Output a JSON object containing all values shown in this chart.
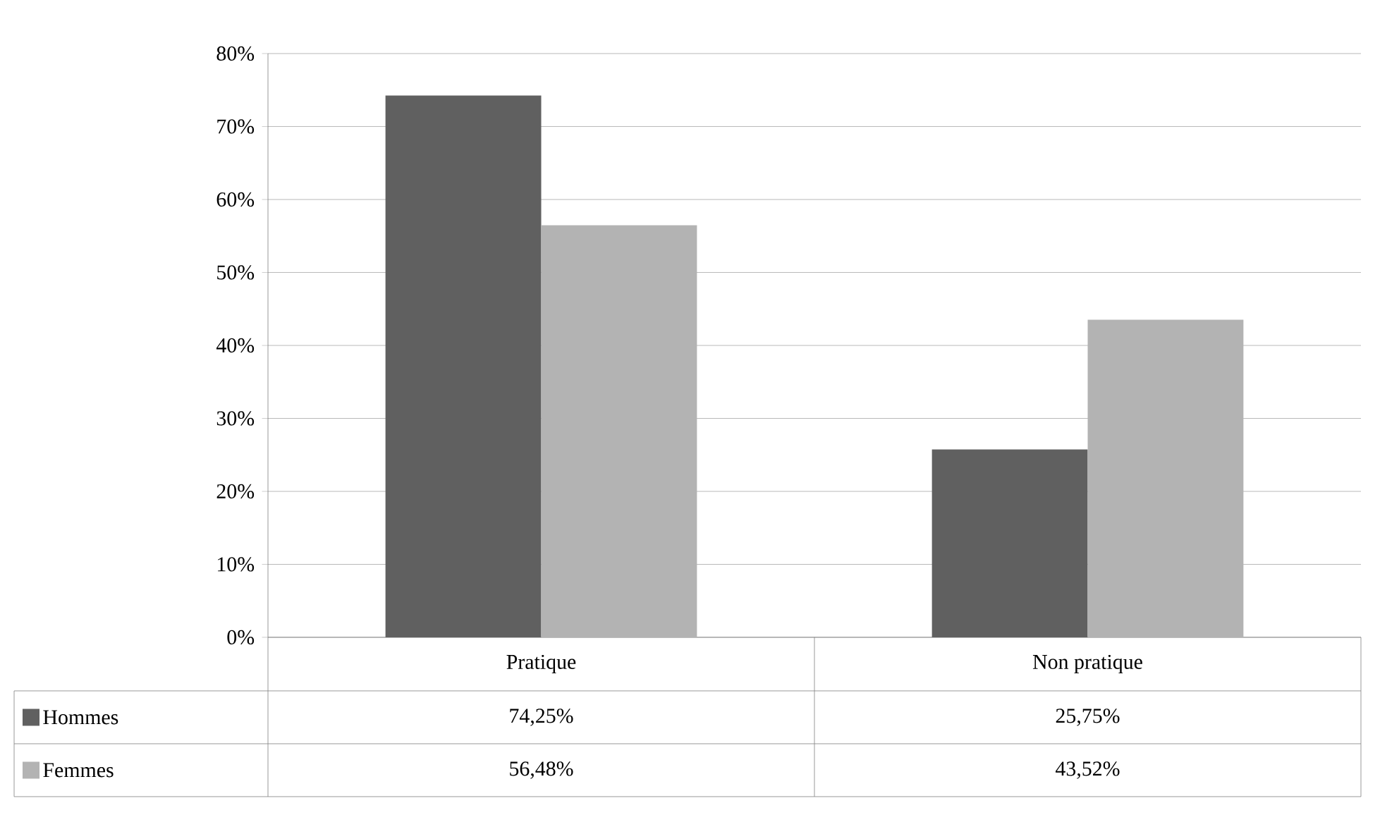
{
  "chart_data": {
    "type": "bar",
    "categories": [
      "Pratique",
      "Non pratique"
    ],
    "series": [
      {
        "name": "Hommes",
        "color": "#606060",
        "values": [
          74.25,
          25.75
        ],
        "value_labels": [
          "74,25%",
          "25,75%"
        ]
      },
      {
        "name": "Femmes",
        "color": "#b3b3b3",
        "values": [
          56.48,
          43.52
        ],
        "value_labels": [
          "56,48%",
          "43,52%"
        ]
      }
    ],
    "ylim": [
      0,
      80
    ],
    "yticks": [
      {
        "value": 0,
        "label": "0%"
      },
      {
        "value": 10,
        "label": "10%"
      },
      {
        "value": 20,
        "label": "20%"
      },
      {
        "value": 30,
        "label": "30%"
      },
      {
        "value": 40,
        "label": "40%"
      },
      {
        "value": 50,
        "label": "50%"
      },
      {
        "value": 60,
        "label": "60%"
      },
      {
        "value": 70,
        "label": "70%"
      },
      {
        "value": 80,
        "label": "80%"
      }
    ],
    "grid": "y",
    "legend": "bottom"
  }
}
